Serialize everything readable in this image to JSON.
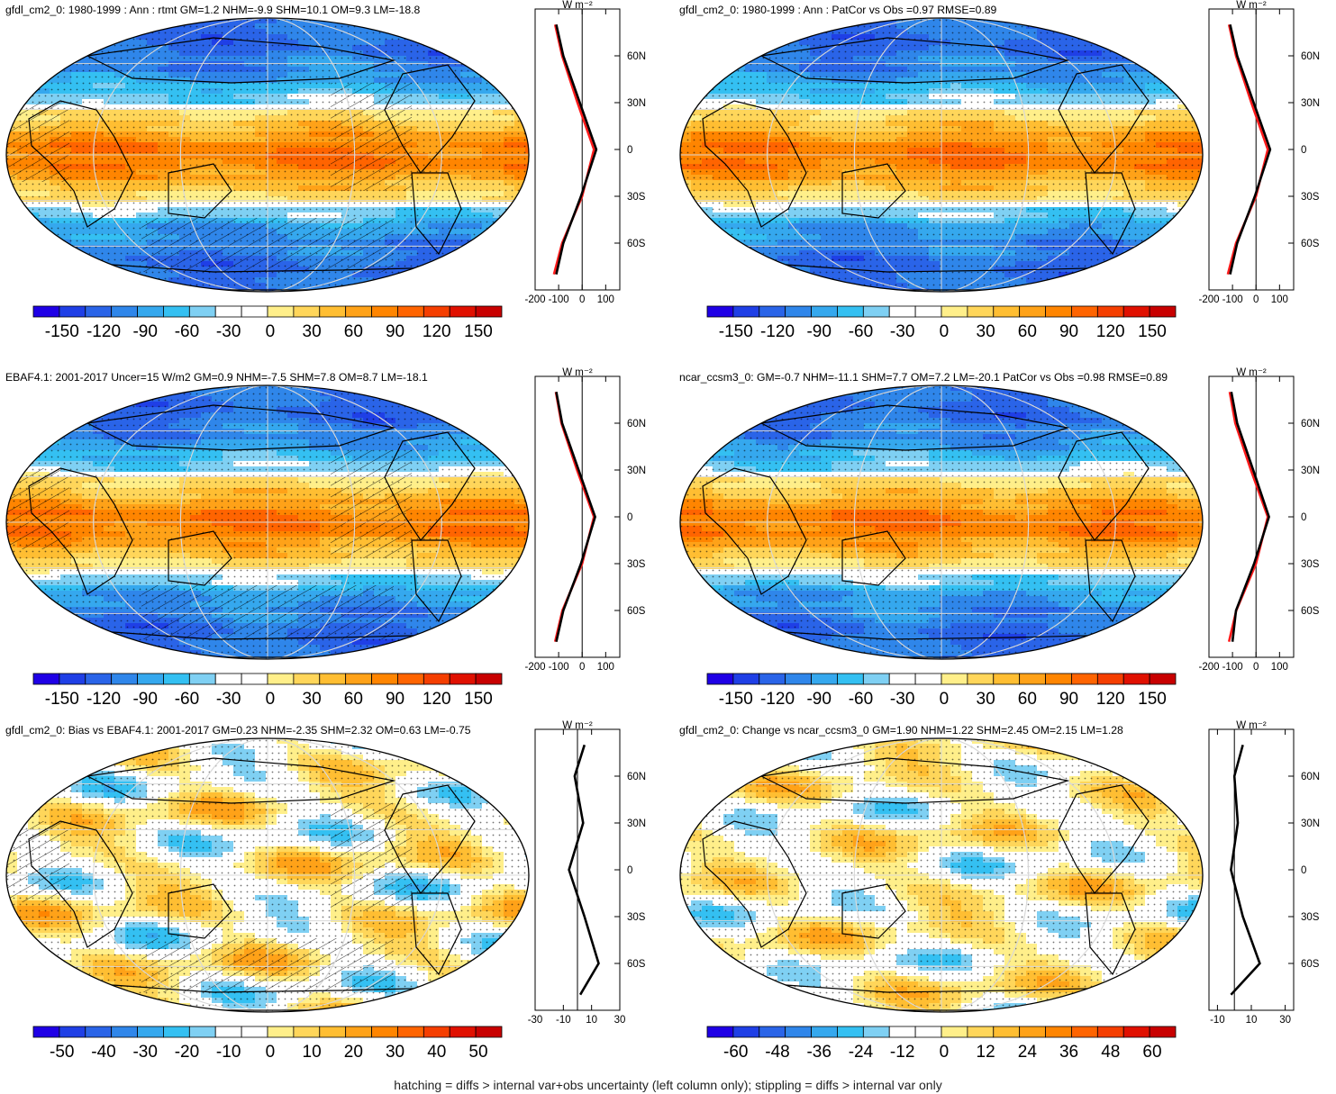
{
  "panels": [
    {
      "title": "gfdl_cm2_0: 1980-1999 : Ann : rtmt GM=1.2 NHM=-9.9 SHM=10.1 OM=9.3 LM=-18.8",
      "kind": "absolute",
      "hatching": true,
      "colorbar": {
        "ticks": [
          "-150",
          "-120",
          "-90",
          "-60",
          "-30",
          "0",
          "30",
          "60",
          "90",
          "120",
          "150"
        ],
        "range": [
          -160,
          160
        ]
      },
      "zonal": {
        "xlim": [
          -200,
          160
        ],
        "xticks": [
          -200,
          -100,
          0,
          100
        ],
        "xtick_labels": [
          "-200",
          "-100",
          "0",
          "100"
        ]
      }
    },
    {
      "title": "gfdl_cm2_0: 1980-1999 : Ann : PatCor vs Obs =0.97 RMSE=0.89",
      "kind": "absolute",
      "hatching": false,
      "colorbar": {
        "ticks": [
          "-150",
          "-120",
          "-90",
          "-60",
          "-30",
          "0",
          "30",
          "60",
          "90",
          "120",
          "150"
        ],
        "range": [
          -160,
          160
        ]
      },
      "zonal": {
        "xlim": [
          -200,
          160
        ],
        "xticks": [
          -200,
          -100,
          0,
          100
        ],
        "xtick_labels": [
          "-200",
          "-100",
          "0",
          "100"
        ]
      }
    },
    {
      "title": "EBAF4.1: 2001-2017 Uncer=15 W/m2 GM=0.9 NHM=-7.5 SHM=7.8 OM=8.7 LM=-18.1",
      "kind": "absolute",
      "hatching": true,
      "colorbar": {
        "ticks": [
          "-150",
          "-120",
          "-90",
          "-60",
          "-30",
          "0",
          "30",
          "60",
          "90",
          "120",
          "150"
        ],
        "range": [
          -160,
          160
        ]
      },
      "zonal": {
        "xlim": [
          -200,
          160
        ],
        "xticks": [
          -200,
          -100,
          0,
          100
        ],
        "xtick_labels": [
          "-200",
          "-100",
          "0",
          "100"
        ]
      }
    },
    {
      "title": "ncar_ccsm3_0: GM=-0.7 NHM=-11.1 SHM=7.7 OM=7.2 LM=-20.1 PatCor vs Obs =0.98 RMSE=0.89",
      "kind": "absolute",
      "hatching": false,
      "colorbar": {
        "ticks": [
          "-150",
          "-120",
          "-90",
          "-60",
          "-30",
          "0",
          "30",
          "60",
          "90",
          "120",
          "150"
        ],
        "range": [
          -160,
          160
        ]
      },
      "zonal": {
        "xlim": [
          -200,
          160
        ],
        "xticks": [
          -200,
          -100,
          0,
          100
        ],
        "xtick_labels": [
          "-200",
          "-100",
          "0",
          "100"
        ]
      }
    },
    {
      "title": "gfdl_cm2_0: Bias vs EBAF4.1: 2001-2017 GM=0.23 NHM=-2.35 SHM=2.32 OM=0.63 LM=-0.75",
      "kind": "bias",
      "hatching": true,
      "colorbar": {
        "ticks": [
          "-50",
          "-40",
          "-30",
          "-20",
          "-10",
          "0",
          "10",
          "20",
          "30",
          "40",
          "50"
        ],
        "range": [
          -55,
          55
        ]
      },
      "zonal": {
        "xlim": [
          -30,
          30
        ],
        "xticks": [
          -30,
          -10,
          10,
          30
        ],
        "xtick_labels": [
          "-30",
          "-10",
          "10",
          "30"
        ]
      }
    },
    {
      "title": "gfdl_cm2_0: Change vs ncar_ccsm3_0 GM=1.90 NHM=1.22 SHM=2.45 OM=2.15 LM=1.28",
      "kind": "change",
      "hatching": false,
      "colorbar": {
        "ticks": [
          "-60",
          "-48",
          "-36",
          "-24",
          "-12",
          "0",
          "12",
          "24",
          "36",
          "48",
          "60"
        ],
        "range": [
          -66,
          66
        ]
      },
      "zonal": {
        "xlim": [
          -15,
          35
        ],
        "xticks": [
          -10,
          10,
          30
        ],
        "xtick_labels": [
          "-10",
          "10",
          "30"
        ]
      }
    }
  ],
  "zonal_unit": "W m⁻²",
  "lat_labels": [
    "60N",
    "30N",
    "0",
    "30S",
    "60S"
  ],
  "colors": {
    "palette": [
      "#1f00e6",
      "#1f3fe6",
      "#2a64e8",
      "#2f86ea",
      "#35a8ee",
      "#34c0f2",
      "#7fd0f3",
      "#ffffff",
      "#ffffff",
      "#ffef8a",
      "#ffd65a",
      "#ffbe32",
      "#ffa218",
      "#ff8500",
      "#ff6400",
      "#f53e00",
      "#e01000",
      "#c80000"
    ],
    "model_line": "#000000",
    "obs_line": "#ff1a1a",
    "alt_line": "#1a1aff"
  },
  "footnote": "hatching = diffs > internal var+obs uncertainty (left column only); stippling = diffs > internal var only",
  "chart_data": [
    {
      "type": "heatmap",
      "panel": "top-left",
      "lat": [
        80,
        60,
        30,
        0,
        -30,
        -60,
        -80
      ],
      "zonal_mean_model": [
        -110,
        -80,
        -10,
        60,
        -5,
        -80,
        -110
      ],
      "zonal_mean_obs": [
        -115,
        -85,
        -20,
        50,
        0,
        -85,
        -120
      ]
    },
    {
      "type": "heatmap",
      "panel": "top-right",
      "lat": [
        80,
        60,
        30,
        0,
        -30,
        -60,
        -80
      ],
      "zonal_mean_model": [
        -110,
        -80,
        -10,
        60,
        -5,
        -80,
        -110
      ],
      "zonal_mean_obs": [
        -115,
        -85,
        -20,
        50,
        0,
        -85,
        -120
      ]
    },
    {
      "type": "heatmap",
      "panel": "middle-left",
      "lat": [
        80,
        60,
        30,
        0,
        -30,
        -60,
        -80
      ],
      "zonal_mean_model": [
        -110,
        -85,
        -15,
        55,
        -5,
        -80,
        -110
      ],
      "zonal_mean_obs": [
        -112,
        -88,
        -22,
        50,
        0,
        -84,
        -115
      ]
    },
    {
      "type": "heatmap",
      "panel": "middle-right",
      "lat": [
        80,
        60,
        30,
        0,
        -30,
        -60,
        -80
      ],
      "zonal_mean_model": [
        -105,
        -80,
        -12,
        55,
        -8,
        -85,
        -100
      ],
      "zonal_mean_obs": [
        -112,
        -88,
        -22,
        50,
        0,
        -84,
        -115
      ]
    },
    {
      "type": "heatmap",
      "panel": "bottom-left",
      "lat": [
        80,
        60,
        30,
        0,
        -30,
        -60,
        -80
      ],
      "zonal_mean_bias": [
        5,
        -2,
        4,
        -6,
        5,
        15,
        2
      ]
    },
    {
      "type": "heatmap",
      "panel": "bottom-right",
      "lat": [
        80,
        60,
        30,
        0,
        -30,
        -60,
        -80
      ],
      "zonal_mean_change": [
        5,
        0,
        2,
        -2,
        5,
        15,
        -2
      ]
    }
  ]
}
